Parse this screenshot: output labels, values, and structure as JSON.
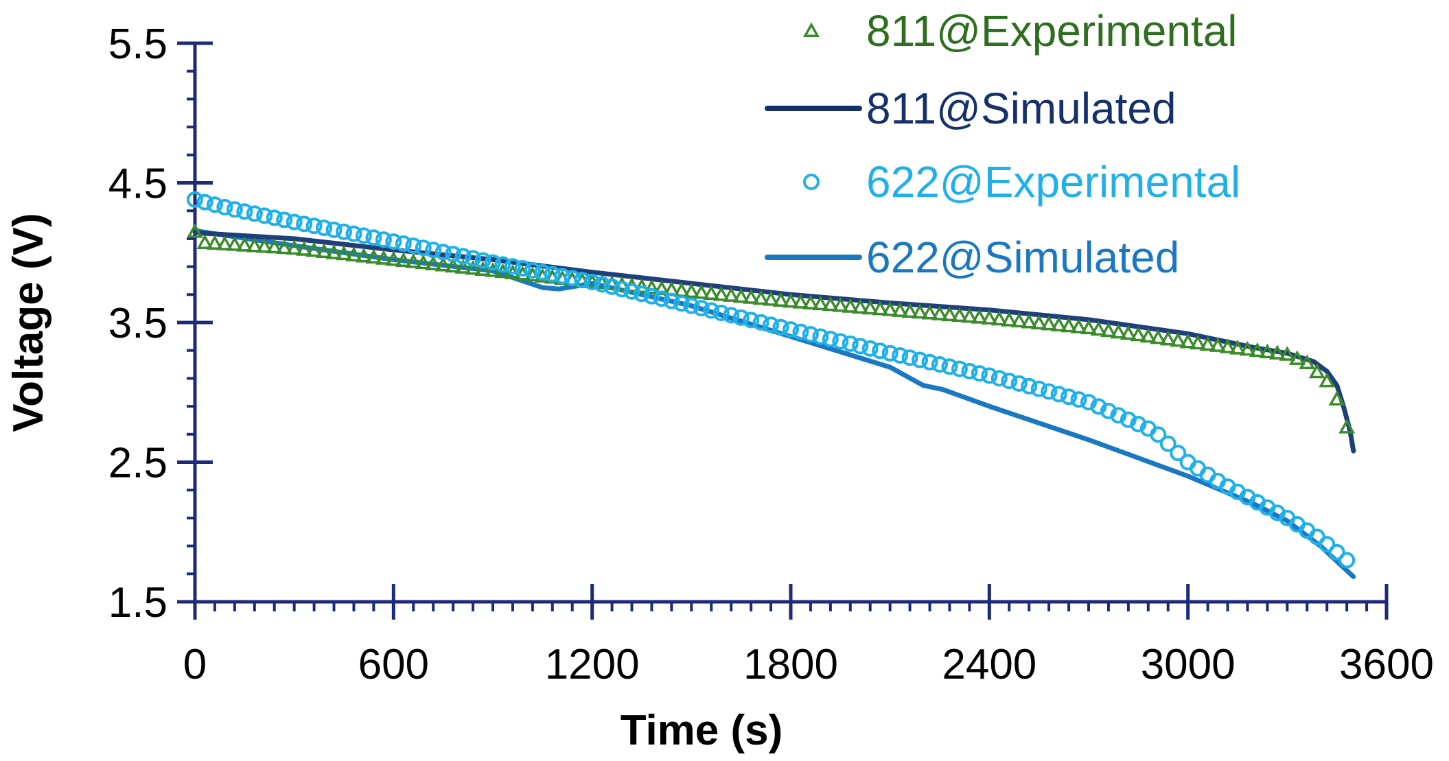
{
  "chart_data": {
    "type": "line",
    "title": "",
    "xlabel": "Time (s)",
    "ylabel": "Voltage (V)",
    "xlim": [
      0,
      3600
    ],
    "ylim": [
      1.5,
      5.5
    ],
    "x_ticks": [
      0,
      600,
      1200,
      1800,
      2400,
      3000,
      3600
    ],
    "x_tick_labels": [
      "0",
      "600",
      "1200",
      "1800",
      "2400",
      "3000",
      "3600"
    ],
    "y_ticks": [
      1.5,
      2.5,
      3.5,
      4.5,
      5.5
    ],
    "y_tick_labels": [
      "1.5",
      "2.5",
      "3.5",
      "4.5",
      "5.5"
    ],
    "x_minor_step": 60,
    "y_minor_step": 0.2,
    "grid": false,
    "legend_position": "top-right",
    "series": [
      {
        "name": "811@Experimental",
        "style": "markers",
        "marker": "triangle",
        "color": "#3a8c2a",
        "legend_color": "#2e6e1f",
        "x_start": 0,
        "x_end": 3500,
        "x_step": 30,
        "keypoints": [
          [
            0,
            4.15
          ],
          [
            30,
            4.07
          ],
          [
            300,
            4.03
          ],
          [
            600,
            3.95
          ],
          [
            1200,
            3.79
          ],
          [
            1500,
            3.72
          ],
          [
            1800,
            3.65
          ],
          [
            2400,
            3.53
          ],
          [
            2700,
            3.46
          ],
          [
            3000,
            3.36
          ],
          [
            3200,
            3.3
          ],
          [
            3300,
            3.27
          ],
          [
            3360,
            3.21
          ],
          [
            3420,
            3.08
          ],
          [
            3450,
            2.95
          ],
          [
            3480,
            2.75
          ],
          [
            3500,
            2.55
          ]
        ]
      },
      {
        "name": "811@Simulated",
        "style": "line",
        "color": "#1f3f7a",
        "legend_color": "#15306b",
        "points": [
          [
            0,
            4.15
          ],
          [
            20,
            4.14
          ],
          [
            300,
            4.1
          ],
          [
            600,
            4.02
          ],
          [
            900,
            3.95
          ],
          [
            1200,
            3.86
          ],
          [
            1500,
            3.78
          ],
          [
            1800,
            3.7
          ],
          [
            2100,
            3.64
          ],
          [
            2400,
            3.59
          ],
          [
            2700,
            3.52
          ],
          [
            3000,
            3.42
          ],
          [
            3200,
            3.32
          ],
          [
            3300,
            3.28
          ],
          [
            3380,
            3.22
          ],
          [
            3420,
            3.15
          ],
          [
            3450,
            3.05
          ],
          [
            3470,
            2.9
          ],
          [
            3490,
            2.72
          ],
          [
            3500,
            2.58
          ]
        ]
      },
      {
        "name": "622@Experimental",
        "style": "markers",
        "marker": "circle",
        "color": "#1fb0ea",
        "legend_color": "#1fb0ea",
        "x_start": 0,
        "x_end": 3500,
        "x_step": 30,
        "keypoints": [
          [
            0,
            4.38
          ],
          [
            100,
            4.32
          ],
          [
            300,
            4.22
          ],
          [
            600,
            4.08
          ],
          [
            900,
            3.93
          ],
          [
            1200,
            3.79
          ],
          [
            1500,
            3.62
          ],
          [
            1800,
            3.45
          ],
          [
            2100,
            3.28
          ],
          [
            2400,
            3.12
          ],
          [
            2700,
            2.93
          ],
          [
            2900,
            2.72
          ],
          [
            3000,
            2.5
          ],
          [
            3100,
            2.35
          ],
          [
            3300,
            2.1
          ],
          [
            3400,
            1.95
          ],
          [
            3500,
            1.76
          ]
        ]
      },
      {
        "name": "622@Simulated",
        "style": "line",
        "color": "#1a78c2",
        "legend_color": "#1a78c2",
        "points": [
          [
            0,
            4.16
          ],
          [
            20,
            4.15
          ],
          [
            300,
            4.05
          ],
          [
            600,
            3.95
          ],
          [
            900,
            3.87
          ],
          [
            1050,
            3.75
          ],
          [
            1100,
            3.74
          ],
          [
            1200,
            3.78
          ],
          [
            1500,
            3.62
          ],
          [
            1800,
            3.4
          ],
          [
            2100,
            3.18
          ],
          [
            2200,
            3.05
          ],
          [
            2260,
            3.02
          ],
          [
            2400,
            2.9
          ],
          [
            2700,
            2.66
          ],
          [
            3000,
            2.4
          ],
          [
            3200,
            2.2
          ],
          [
            3300,
            2.08
          ],
          [
            3400,
            1.9
          ],
          [
            3500,
            1.68
          ]
        ]
      }
    ]
  }
}
